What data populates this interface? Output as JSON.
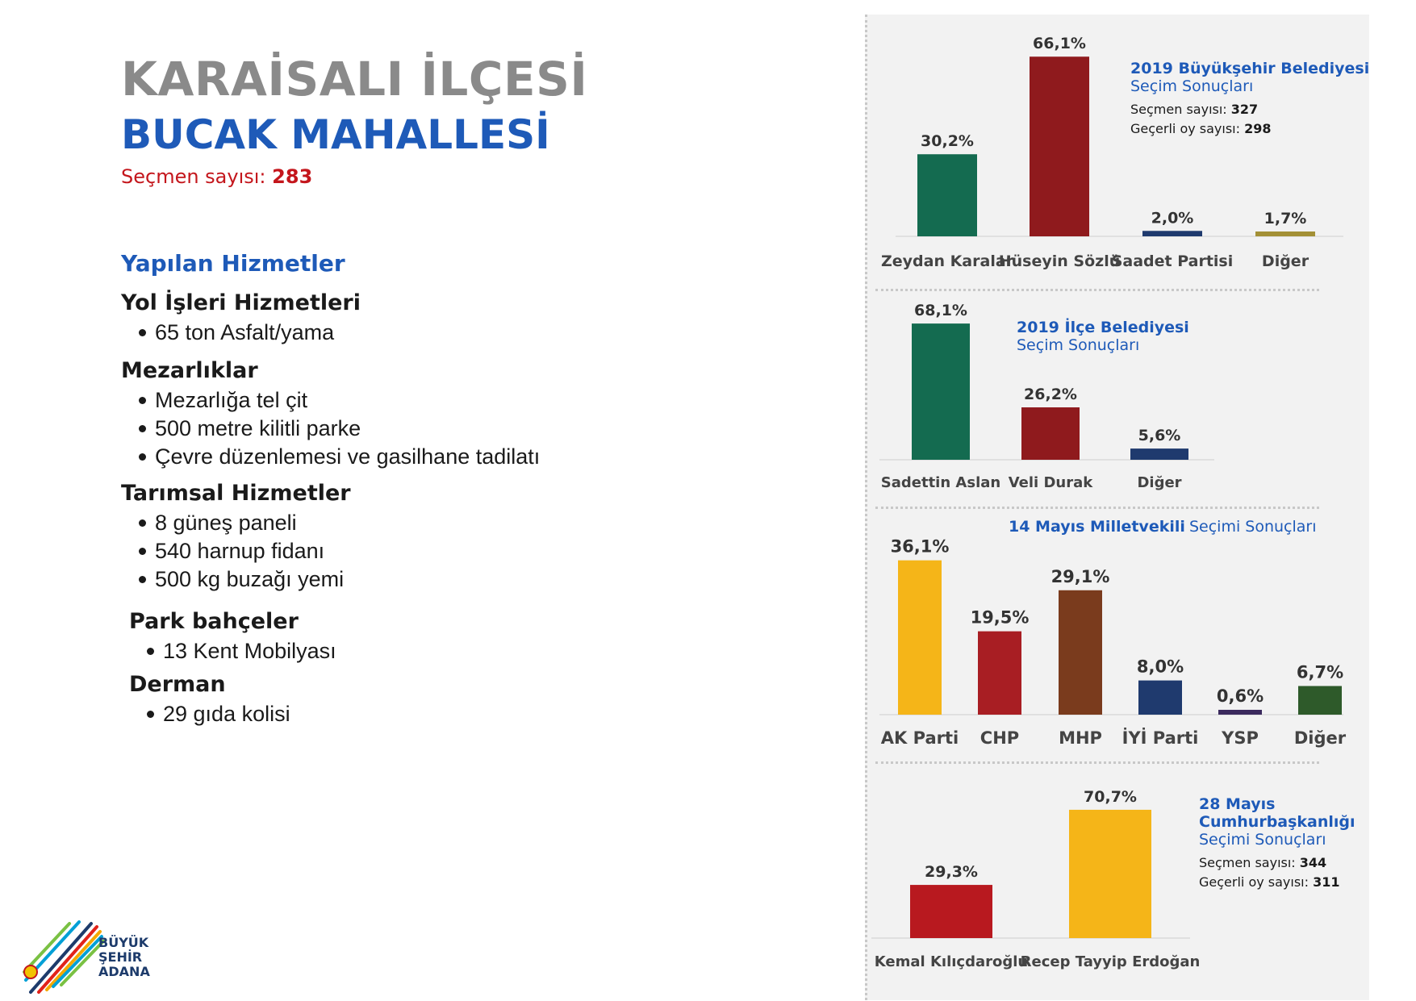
{
  "header": {
    "district": "KARAİSALI İLÇESİ",
    "neighborhood": "BUCAK MAHALLESİ",
    "voters_label": "Seçmen sayısı:",
    "voters_value": "283"
  },
  "services": {
    "title": "Yapılan Hizmetler",
    "groups": [
      {
        "title": "Yol İşleri Hizmetleri",
        "items": [
          "65 ton Asfalt/yama"
        ]
      },
      {
        "title": "Mezarlıklar",
        "items": [
          "Mezarlığa tel çit",
          "500 metre kilitli parke",
          "Çevre düzenlemesi ve gasilhane tadilatı"
        ]
      },
      {
        "title": "Tarımsal Hizmetler",
        "items": [
          "8 güneş paneli",
          "540 harnup fidanı",
          "500 kg buzağı yemi"
        ]
      },
      {
        "title": "Park bahçeler",
        "items": [
          "13 Kent Mobilyası"
        ]
      },
      {
        "title": "Derman",
        "items": [
          "29 gıda kolisi"
        ]
      }
    ]
  },
  "logo": {
    "line1": "BÜYÜK",
    "line2": "ŞEHİR",
    "line3": "ADANA"
  },
  "info": {
    "c1": {
      "t1": "2019 Büyükşehir Belediyesi",
      "t2": "Seçim Sonuçları",
      "l1": "Seçmen sayısı:",
      "v1": "327",
      "l2": "Geçerli oy sayısı:",
      "v2": "298"
    },
    "c2": {
      "t1": "2019 İlçe Belediyesi",
      "t2": "Seçim Sonuçları"
    },
    "c3": {
      "t1": "14 Mayıs Milletvekili",
      "t2": "Seçimi Sonuçları"
    },
    "c4": {
      "t1a": "28 Mayıs",
      "t1b": "Cumhurbaşkanlığı",
      "t2": "Seçimi Sonuçları",
      "l1": "Seçmen sayısı:",
      "v1": "344",
      "l2": "Geçerli oy sayısı:",
      "v2": "311"
    }
  },
  "chart_data": [
    {
      "type": "bar",
      "title": "2019 Büyükşehir Belediyesi Seçim Sonuçları",
      "categories": [
        "Zeydan Karalar",
        "Hüseyin Sözlü",
        "Saadet Partisi",
        "Diğer"
      ],
      "values": [
        30.2,
        66.1,
        2.0,
        1.7
      ],
      "labels": [
        "30,2%",
        "66,1%",
        "2,0%",
        "1,7%"
      ],
      "colors": [
        "#146b50",
        "#8f1a1d",
        "#1f3a6e",
        "#a39036"
      ]
    },
    {
      "type": "bar",
      "title": "2019 İlçe Belediyesi Seçim Sonuçları",
      "categories": [
        "Sadettin Aslan",
        "Veli Durak",
        "Diğer"
      ],
      "values": [
        68.1,
        26.2,
        5.6
      ],
      "labels": [
        "68,1%",
        "26,2%",
        "5,6%"
      ],
      "colors": [
        "#146b50",
        "#8f1a1d",
        "#1f3a6e"
      ]
    },
    {
      "type": "bar",
      "title": "14 Mayıs Milletvekili Seçimi Sonuçları",
      "categories": [
        "AK Parti",
        "CHP",
        "MHP",
        "İYİ Parti",
        "YSP",
        "Diğer"
      ],
      "values": [
        36.1,
        19.5,
        29.1,
        8.0,
        0.6,
        6.7
      ],
      "labels": [
        "36,1%",
        "19,5%",
        "29,1%",
        "8,0%",
        "0,6%",
        "6,7%"
      ],
      "colors": [
        "#f5b518",
        "#a81e23",
        "#7a3b1d",
        "#1f3a6e",
        "#3b2a5e",
        "#2e5a2a"
      ]
    },
    {
      "type": "bar",
      "title": "28 Mayıs Cumhurbaşkanlığı Seçimi Sonuçları",
      "categories": [
        "Kemal Kılıçdaroğlu",
        "Recep Tayyip Erdoğan"
      ],
      "values": [
        29.3,
        70.7
      ],
      "labels": [
        "29,3%",
        "70,7%"
      ],
      "colors": [
        "#b8191f",
        "#f5b518"
      ]
    }
  ]
}
